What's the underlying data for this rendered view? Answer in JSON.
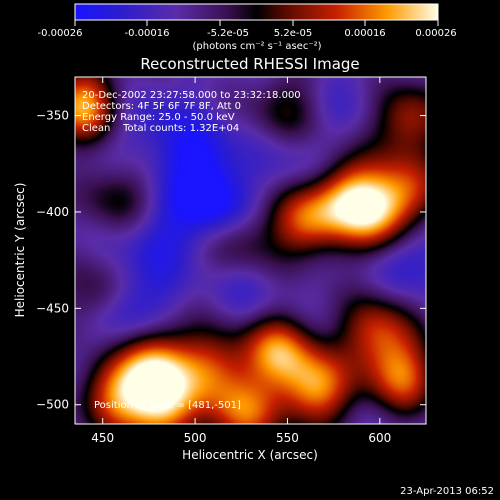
{
  "chart_data": {
    "type": "heatmap",
    "title": "Reconstructed RHESSI Image",
    "xlabel": "Heliocentric X (arcsec)",
    "ylabel": "Heliocentric Y (arcsec)",
    "xlim": [
      435,
      625
    ],
    "ylim": [
      -510,
      -330
    ],
    "x_ticks": [
      450,
      500,
      550,
      600
    ],
    "y_ticks": [
      -350,
      -400,
      -450,
      -500
    ],
    "colorbar": {
      "range": [
        -0.00026,
        0.00026
      ],
      "ticks": [
        "-0.00026",
        "-0.00016",
        "-5.2e-05",
        "5.2e-05",
        "0.00016",
        "0.00026"
      ],
      "units": "(photons cm⁻² s⁻¹ asec⁻²)"
    },
    "annotations": [
      "20-Dec-2002 23:27:58.000 to 23:32:18.000",
      "Detectors: 4F 5F 6F 7F 8F, Att 0",
      "Energy Range: 25.0 - 50.0 keV",
      "Clean    Total counts: 1.32E+04"
    ],
    "peak_label": "Position of peak = [481,-501]",
    "sources": [
      {
        "x": 440,
        "y": -344,
        "v": 0.00026
      },
      {
        "x": 548,
        "y": -345,
        "v": 7e-05
      },
      {
        "x": 615,
        "y": -352,
        "v": 0.00016
      },
      {
        "x": 583,
        "y": -392,
        "v": 0.00022
      },
      {
        "x": 560,
        "y": -405,
        "v": 0.0002
      },
      {
        "x": 600,
        "y": -402,
        "v": 0.00018
      },
      {
        "x": 615,
        "y": -388,
        "v": 0.00014
      },
      {
        "x": 525,
        "y": -415,
        "v": 7e-05
      },
      {
        "x": 458,
        "y": -393,
        "v": 8e-05
      },
      {
        "x": 448,
        "y": -445,
        "v": 0.0001
      },
      {
        "x": 478,
        "y": -478,
        "v": 0.00024
      },
      {
        "x": 481,
        "y": -501,
        "v": 0.00026
      },
      {
        "x": 455,
        "y": -495,
        "v": 0.00018
      },
      {
        "x": 510,
        "y": -480,
        "v": 0.00016
      },
      {
        "x": 545,
        "y": -472,
        "v": 0.00022
      },
      {
        "x": 565,
        "y": -492,
        "v": 0.00024
      },
      {
        "x": 598,
        "y": -462,
        "v": 0.00018
      },
      {
        "x": 612,
        "y": -485,
        "v": 0.0002
      },
      {
        "x": 525,
        "y": -505,
        "v": 0.0002
      },
      {
        "x": 500,
        "y": -370,
        "v": -0.00018
      },
      {
        "x": 470,
        "y": -355,
        "v": -0.00012
      },
      {
        "x": 510,
        "y": -395,
        "v": -0.00022
      },
      {
        "x": 555,
        "y": -378,
        "v": -0.0001
      },
      {
        "x": 480,
        "y": -410,
        "v": -0.00014
      },
      {
        "x": 470,
        "y": -440,
        "v": -0.00012
      },
      {
        "x": 530,
        "y": -440,
        "v": -0.0001
      },
      {
        "x": 460,
        "y": -455,
        "v": -0.00016
      },
      {
        "x": 620,
        "y": -420,
        "v": -0.00015
      },
      {
        "x": 585,
        "y": -340,
        "v": -8e-05
      },
      {
        "x": 605,
        "y": -440,
        "v": -6e-05
      }
    ]
  },
  "footer": {
    "date": "23-Apr-2013 06:52"
  }
}
